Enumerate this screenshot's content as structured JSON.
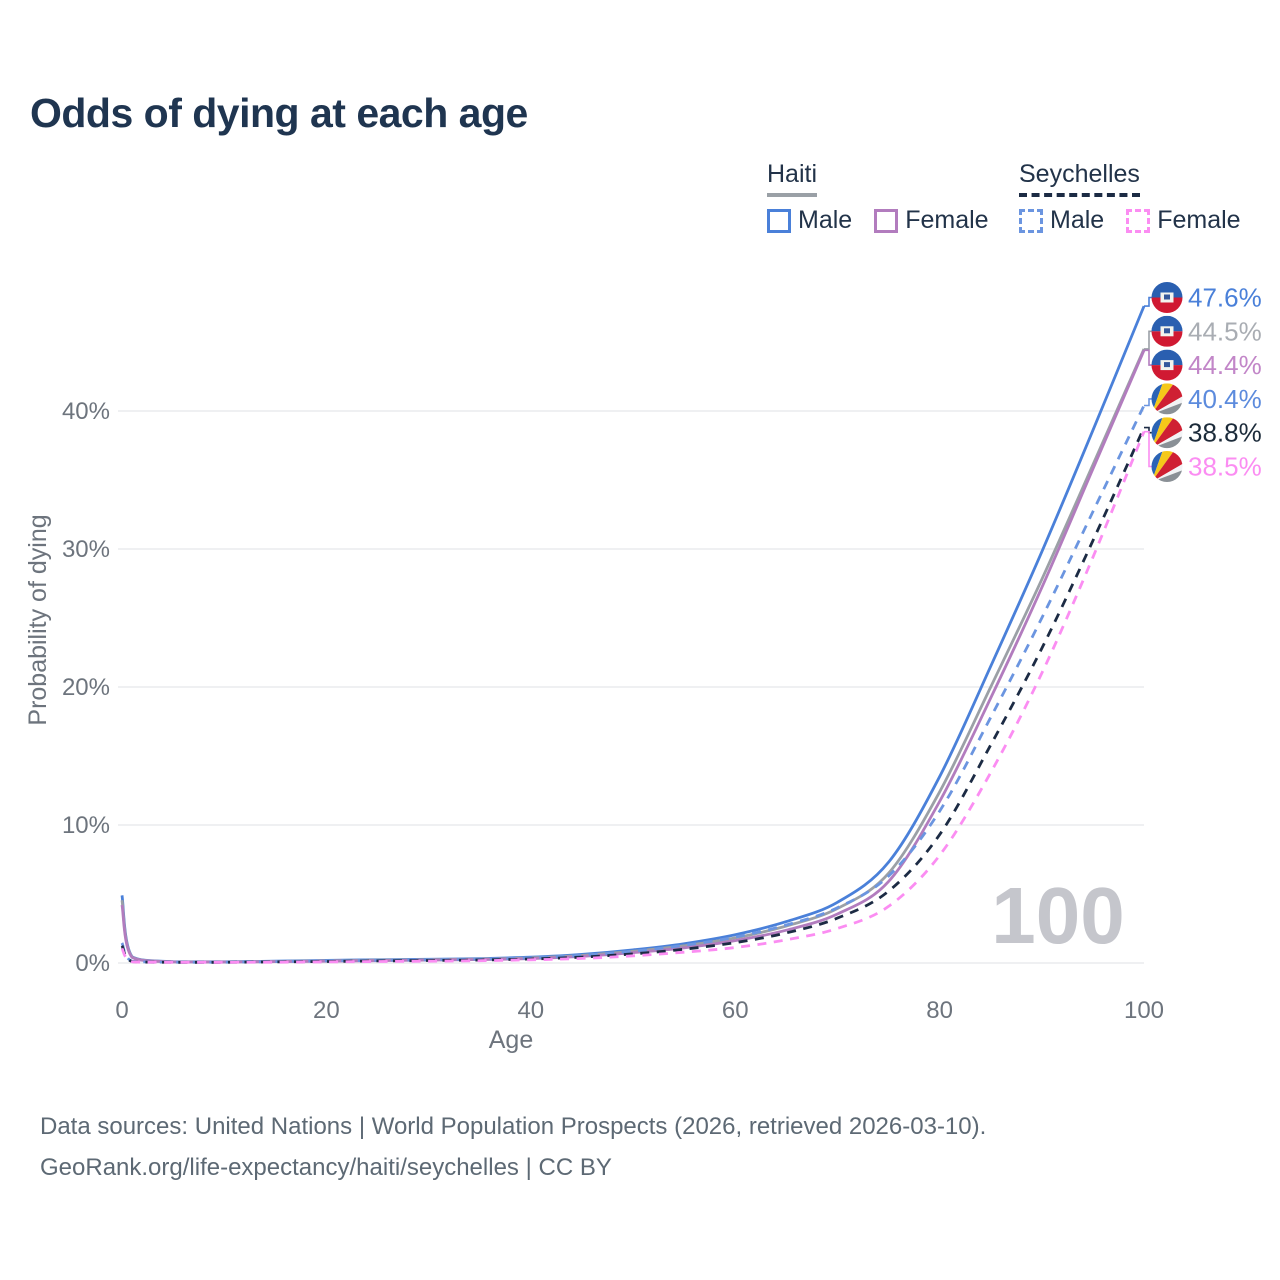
{
  "title": "Odds of dying at each age",
  "legend": {
    "haiti": {
      "name": "Haiti",
      "male": "Male",
      "female": "Female"
    },
    "seychelles": {
      "name": "Seychelles",
      "male": "Male",
      "female": "Female"
    }
  },
  "watermark_age": "100",
  "footer": {
    "line1": "Data sources: United Nations | World Population Prospects (2026, retrieved 2026-03-10).",
    "line2": "GeoRank.org/life-expectancy/haiti/seychelles | CC BY"
  },
  "colors": {
    "title_text": "#1f3550",
    "legend_text": "#223349",
    "axis_text": "#6d747d",
    "gridline": "#eaebee",
    "footer_text": "#5d6974",
    "watermark": "#c5c6cc",
    "haiti_underline": "#9aa0a6",
    "seychelles_underline": "#1c2b44"
  },
  "chart_data": {
    "type": "line",
    "title": "Odds of dying at each age",
    "xlabel": "Age",
    "ylabel": "Probability of dying",
    "xlim": [
      0,
      100
    ],
    "ylim": [
      0,
      48
    ],
    "xticks": [
      0,
      20,
      40,
      60,
      80,
      100
    ],
    "yticks": [
      0,
      10,
      20,
      30,
      40
    ],
    "ytick_suffix": "%",
    "grid": "horizontal",
    "age_marker": "100",
    "x": [
      0,
      1,
      5,
      10,
      15,
      20,
      25,
      30,
      35,
      40,
      45,
      50,
      55,
      60,
      65,
      70,
      75,
      80,
      85,
      90,
      95,
      100
    ],
    "series": [
      {
        "name": "Haiti Male",
        "country": "Haiti",
        "sex": "Male",
        "style": "solid",
        "color": "#4a80d9",
        "end_label": "47.6%",
        "label_color": "#4a80d9",
        "flag": "haiti",
        "values": [
          4.9,
          0.45,
          0.1,
          0.09,
          0.13,
          0.19,
          0.23,
          0.27,
          0.32,
          0.42,
          0.62,
          0.95,
          1.4,
          2.05,
          3.0,
          4.4,
          7.3,
          13.5,
          21.5,
          29.8,
          38.6,
          47.6
        ]
      },
      {
        "name": "Haiti Both sexes",
        "country": "Haiti",
        "sex": "Both",
        "style": "solid",
        "color": "#9ba0a6",
        "end_label": "44.5%",
        "label_color": "#a9adb3",
        "flag": "haiti",
        "values": [
          4.55,
          0.42,
          0.09,
          0.08,
          0.11,
          0.16,
          0.2,
          0.24,
          0.28,
          0.37,
          0.55,
          0.85,
          1.25,
          1.82,
          2.68,
          3.95,
          6.5,
          12.4,
          20.0,
          27.8,
          36.1,
          44.5
        ]
      },
      {
        "name": "Haiti Female",
        "country": "Haiti",
        "sex": "Female",
        "style": "solid",
        "color": "#b27cbe",
        "end_label": "44.4%",
        "label_color": "#c286c8",
        "flag": "haiti",
        "values": [
          4.2,
          0.4,
          0.08,
          0.07,
          0.1,
          0.13,
          0.17,
          0.21,
          0.25,
          0.32,
          0.48,
          0.75,
          1.1,
          1.62,
          2.38,
          3.55,
          5.9,
          11.7,
          19.2,
          27.2,
          35.8,
          44.4
        ]
      },
      {
        "name": "Seychelles Male",
        "country": "Seychelles",
        "sex": "Male",
        "style": "dashed",
        "color": "#6b95e0",
        "end_label": "40.4%",
        "label_color": "#5c8bdd",
        "flag": "seychelles",
        "values": [
          1.45,
          0.12,
          0.06,
          0.06,
          0.1,
          0.15,
          0.19,
          0.23,
          0.28,
          0.37,
          0.55,
          0.85,
          1.28,
          1.88,
          2.75,
          4.0,
          6.3,
          11.0,
          17.8,
          25.0,
          32.7,
          40.4
        ]
      },
      {
        "name": "Seychelles Both sexes",
        "country": "Seychelles",
        "sex": "Both",
        "style": "dashed",
        "color": "#1c2b44",
        "end_label": "38.8%",
        "label_color": "#1c2b3a",
        "flag": "seychelles",
        "values": [
          1.25,
          0.1,
          0.05,
          0.05,
          0.08,
          0.11,
          0.15,
          0.18,
          0.22,
          0.29,
          0.43,
          0.66,
          1.0,
          1.48,
          2.18,
          3.25,
          5.2,
          9.3,
          15.8,
          22.8,
          30.6,
          38.8
        ]
      },
      {
        "name": "Seychelles Female",
        "country": "Seychelles",
        "sex": "Female",
        "style": "dashed",
        "color": "#fb8df2",
        "end_label": "38.5%",
        "label_color": "#fb8df2",
        "flag": "seychelles",
        "values": [
          1.05,
          0.09,
          0.05,
          0.05,
          0.06,
          0.08,
          0.11,
          0.13,
          0.17,
          0.23,
          0.33,
          0.52,
          0.78,
          1.12,
          1.68,
          2.5,
          4.1,
          7.8,
          13.8,
          21.0,
          29.4,
          38.5
        ]
      }
    ]
  }
}
